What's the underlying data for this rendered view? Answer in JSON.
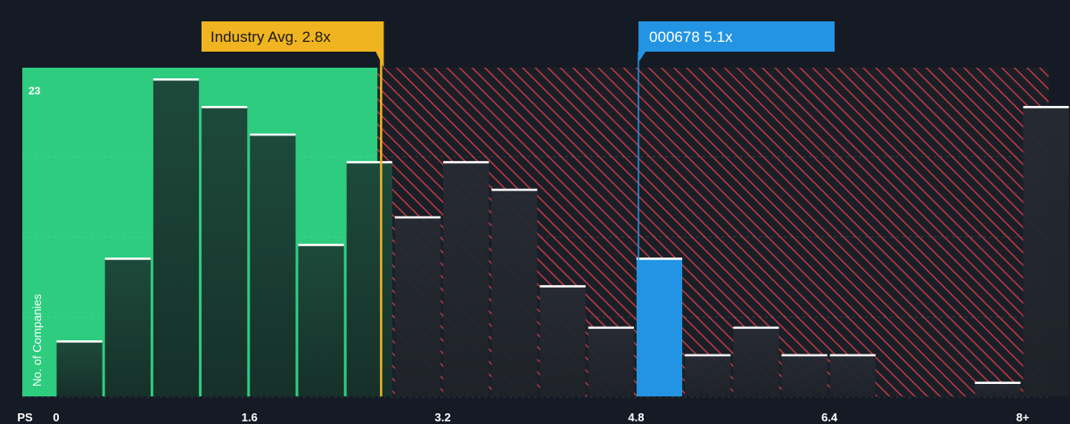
{
  "chart_data": {
    "type": "bar",
    "xlabel": "PS",
    "ylabel": "No. of Companies",
    "x_tick_labels": [
      "0",
      "1.6",
      "3.2",
      "4.8",
      "6.4",
      "8+"
    ],
    "x_tick_values": [
      0,
      1.6,
      3.2,
      4.8,
      6.4,
      8
    ],
    "y_max_label": "23",
    "ylim": [
      0,
      24
    ],
    "bin_width": 0.4,
    "bins": [
      {
        "start": 0.0,
        "count": 4
      },
      {
        "start": 0.4,
        "count": 10
      },
      {
        "start": 0.8,
        "count": 23
      },
      {
        "start": 1.2,
        "count": 21
      },
      {
        "start": 1.6,
        "count": 19
      },
      {
        "start": 2.0,
        "count": 11
      },
      {
        "start": 2.4,
        "count": 17
      },
      {
        "start": 2.8,
        "count": 13
      },
      {
        "start": 3.2,
        "count": 17
      },
      {
        "start": 3.6,
        "count": 15
      },
      {
        "start": 4.0,
        "count": 8
      },
      {
        "start": 4.4,
        "count": 5
      },
      {
        "start": 4.8,
        "count": 10,
        "highlight": true
      },
      {
        "start": 5.2,
        "count": 3
      },
      {
        "start": 5.6,
        "count": 5
      },
      {
        "start": 6.0,
        "count": 3
      },
      {
        "start": 6.4,
        "count": 3
      },
      {
        "start": 6.8,
        "count": 0
      },
      {
        "start": 7.2,
        "count": 0
      },
      {
        "start": 7.6,
        "count": 1
      },
      {
        "start": 8.0,
        "count": 21
      }
    ],
    "industry_avg": {
      "label": "Industry Avg. 2.8x",
      "value": 2.8
    },
    "company": {
      "label": "000678 5.1x",
      "value": 5.1
    },
    "colors": {
      "background": "#151b24",
      "fair_zone": "#2ecc7f",
      "over_zone_hatch": "#c0383f",
      "bar_fill": "#1d4a3a",
      "bar_fill_over": "#262a33",
      "bar_top": "#ffffff",
      "highlight_bar": "#2394e3",
      "industry_avg": "#f0b420",
      "company": "#2394e3"
    }
  }
}
